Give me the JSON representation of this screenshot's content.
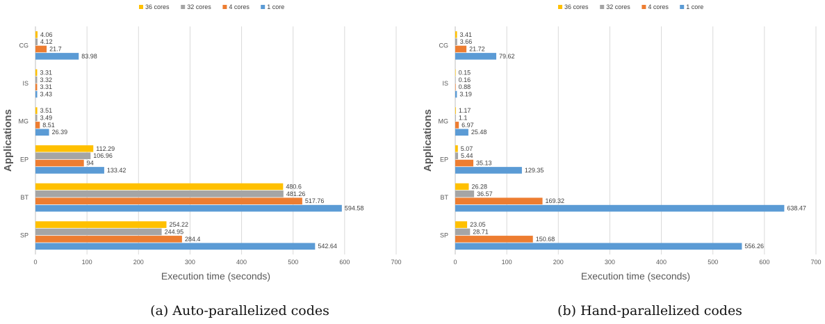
{
  "figure": {
    "captions": [
      "(a) Auto-parallelized codes",
      "(b) Hand-parallelized codes"
    ]
  },
  "chart_data": [
    {
      "type": "bar",
      "orientation": "horizontal",
      "title": "",
      "xlabel": "Execution time (seconds)",
      "ylabel": "Applications",
      "xlim": [
        0,
        700
      ],
      "xticks": [
        0,
        100,
        200,
        300,
        400,
        500,
        600,
        700
      ],
      "grid": true,
      "legend_position": "top",
      "categories": [
        "CG",
        "IS",
        "MG",
        "EP",
        "BT",
        "SP"
      ],
      "series": [
        {
          "name": "36 cores",
          "color": "#FFC000",
          "values": [
            4.06,
            3.31,
            3.51,
            112.29,
            480.6,
            254.22
          ]
        },
        {
          "name": "32 cores",
          "color": "#A5A5A5",
          "values": [
            4.12,
            3.32,
            3.49,
            106.96,
            481.26,
            244.95
          ]
        },
        {
          "name": "4 cores",
          "color": "#ED7D31",
          "values": [
            21.7,
            3.31,
            8.51,
            94,
            517.76,
            284.4
          ]
        },
        {
          "name": "1 core",
          "color": "#5B9BD5",
          "values": [
            83.98,
            3.43,
            26.39,
            133.42,
            594.58,
            542.64
          ]
        }
      ]
    },
    {
      "type": "bar",
      "orientation": "horizontal",
      "title": "",
      "xlabel": "Execution time (seconds)",
      "ylabel": "Applications",
      "xlim": [
        0,
        700
      ],
      "xticks": [
        0,
        100,
        200,
        300,
        400,
        500,
        600,
        700
      ],
      "grid": true,
      "legend_position": "top",
      "categories": [
        "CG",
        "IS",
        "MG",
        "EP",
        "BT",
        "SP"
      ],
      "series": [
        {
          "name": "36 cores",
          "color": "#FFC000",
          "values": [
            3.41,
            0.15,
            1.17,
            5.07,
            26.28,
            23.05
          ]
        },
        {
          "name": "32 cores",
          "color": "#A5A5A5",
          "values": [
            3.66,
            0.16,
            1.1,
            5.44,
            36.57,
            28.71
          ]
        },
        {
          "name": "4 cores",
          "color": "#ED7D31",
          "values": [
            21.72,
            0.88,
            6.97,
            35.13,
            169.32,
            150.68
          ]
        },
        {
          "name": "1 core",
          "color": "#5B9BD5",
          "values": [
            79.62,
            3.19,
            25.48,
            129.35,
            638.47,
            556.26
          ]
        }
      ]
    }
  ]
}
